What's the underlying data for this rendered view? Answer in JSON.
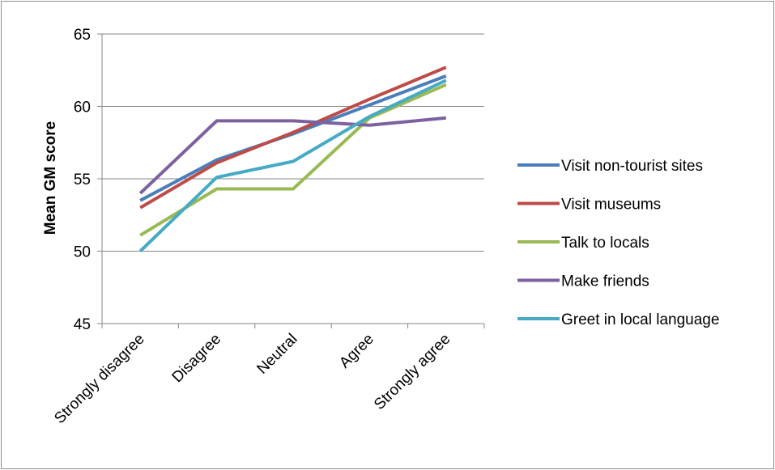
{
  "chart_data": {
    "type": "line",
    "ylabel": "Mean GM score",
    "xlabel": "",
    "title": "",
    "categories": [
      "Strongly disagree",
      "Disagree",
      "Neutral",
      "Agree",
      "Strongly agree"
    ],
    "ylim": [
      45,
      65
    ],
    "yticks": [
      45,
      50,
      55,
      60,
      65
    ],
    "grid": "horizontal",
    "legend_position": "right",
    "series": [
      {
        "name": "Visit non-tourist sites",
        "color": "#4a7ebb",
        "values": [
          53.5,
          56.3,
          58.1,
          60.1,
          62.1
        ]
      },
      {
        "name": "Visit museums",
        "color": "#be4b48",
        "values": [
          53.0,
          56.1,
          58.2,
          60.5,
          62.7
        ]
      },
      {
        "name": "Talk to locals",
        "color": "#98b954",
        "values": [
          51.1,
          54.3,
          54.3,
          59.2,
          61.5
        ]
      },
      {
        "name": "Make friends",
        "color": "#7d60a0",
        "values": [
          54.0,
          59.0,
          59.0,
          58.7,
          59.2
        ]
      },
      {
        "name": "Greet in local language",
        "color": "#46aac5",
        "values": [
          50.0,
          55.1,
          56.2,
          59.3,
          61.8
        ]
      }
    ]
  }
}
